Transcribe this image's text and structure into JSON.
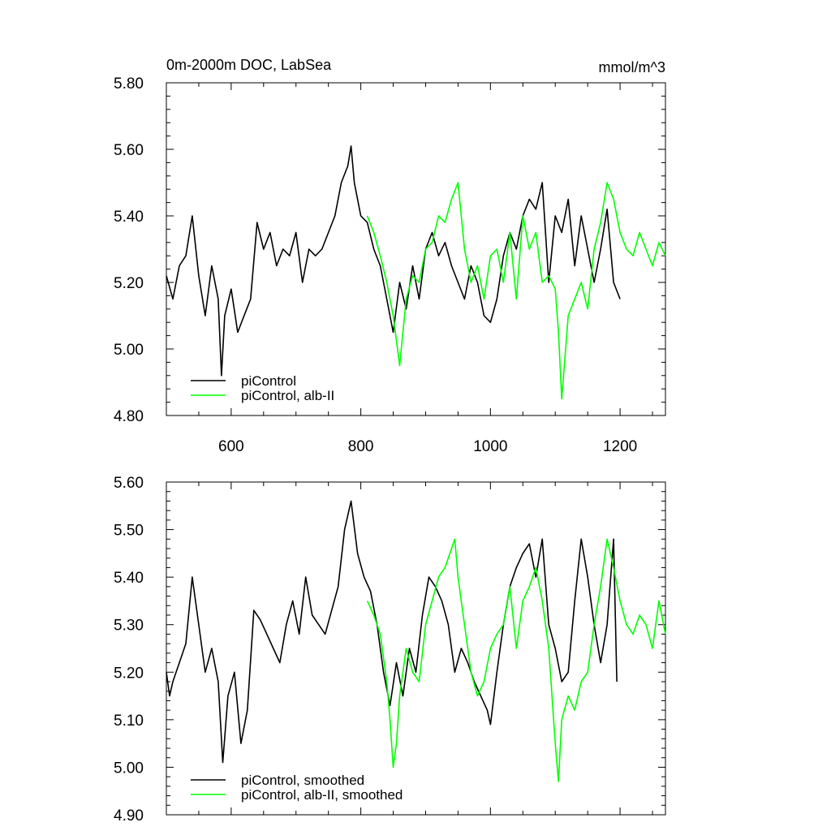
{
  "chart_data": [
    {
      "type": "line",
      "title": "0m-2000m DOC, LabSea",
      "units": "mmol/m^3",
      "xlabel": "",
      "ylabel": "",
      "xlim": [
        500,
        1270
      ],
      "ylim": [
        4.8,
        5.8
      ],
      "xticks": [
        600,
        800,
        1000,
        1200
      ],
      "xtick_labels": [
        "600",
        "800",
        "1000",
        "1200"
      ],
      "yticks": [
        4.8,
        5.0,
        5.2,
        5.4,
        5.6,
        5.8
      ],
      "ytick_labels": [
        "4.80",
        "5.00",
        "5.20",
        "5.40",
        "5.60",
        "5.80"
      ],
      "legend_position": "bottom-left",
      "grid": false,
      "series": [
        {
          "name": "piControl",
          "color": "#000000",
          "x": [
            500,
            510,
            520,
            530,
            540,
            550,
            560,
            570,
            580,
            585,
            590,
            600,
            610,
            620,
            630,
            640,
            650,
            660,
            670,
            680,
            690,
            700,
            710,
            720,
            730,
            740,
            750,
            760,
            770,
            780,
            785,
            790,
            800,
            810,
            820,
            830,
            840,
            850,
            860,
            870,
            880,
            890,
            900,
            910,
            920,
            930,
            940,
            950,
            960,
            970,
            980,
            990,
            1000,
            1010,
            1020,
            1030,
            1040,
            1050,
            1060,
            1070,
            1080,
            1090,
            1100,
            1110,
            1120,
            1130,
            1140,
            1150,
            1160,
            1170,
            1180,
            1190,
            1200
          ],
          "values": [
            5.22,
            5.15,
            5.25,
            5.28,
            5.4,
            5.22,
            5.1,
            5.25,
            5.15,
            4.92,
            5.1,
            5.18,
            5.05,
            5.1,
            5.15,
            5.38,
            5.3,
            5.35,
            5.25,
            5.3,
            5.28,
            5.35,
            5.2,
            5.3,
            5.28,
            5.3,
            5.35,
            5.4,
            5.5,
            5.55,
            5.61,
            5.5,
            5.4,
            5.38,
            5.3,
            5.25,
            5.15,
            5.05,
            5.2,
            5.12,
            5.25,
            5.15,
            5.3,
            5.35,
            5.28,
            5.32,
            5.25,
            5.2,
            5.15,
            5.25,
            5.2,
            5.1,
            5.08,
            5.15,
            5.28,
            5.35,
            5.3,
            5.4,
            5.45,
            5.42,
            5.5,
            5.2,
            5.4,
            5.35,
            5.45,
            5.25,
            5.4,
            5.3,
            5.2,
            5.3,
            5.42,
            5.2,
            5.15
          ]
        },
        {
          "name": "piControl, alb-II",
          "color": "#00ff00",
          "x": [
            810,
            820,
            830,
            840,
            850,
            860,
            870,
            880,
            890,
            900,
            910,
            920,
            930,
            940,
            950,
            960,
            970,
            980,
            990,
            1000,
            1010,
            1020,
            1030,
            1040,
            1050,
            1060,
            1070,
            1080,
            1090,
            1100,
            1105,
            1110,
            1120,
            1130,
            1140,
            1150,
            1160,
            1170,
            1180,
            1190,
            1200,
            1210,
            1220,
            1230,
            1240,
            1250,
            1260,
            1270
          ],
          "values": [
            5.4,
            5.35,
            5.28,
            5.2,
            5.1,
            4.95,
            5.15,
            5.22,
            5.2,
            5.3,
            5.32,
            5.4,
            5.38,
            5.45,
            5.5,
            5.3,
            5.2,
            5.25,
            5.15,
            5.28,
            5.3,
            5.2,
            5.35,
            5.15,
            5.4,
            5.3,
            5.35,
            5.2,
            5.22,
            5.18,
            5.05,
            4.85,
            5.1,
            5.15,
            5.2,
            5.12,
            5.3,
            5.38,
            5.5,
            5.45,
            5.35,
            5.3,
            5.28,
            5.35,
            5.3,
            5.25,
            5.32,
            5.28
          ]
        }
      ]
    },
    {
      "type": "line",
      "title": "",
      "xlabel": "",
      "ylabel": "",
      "xlim": [
        500,
        1270
      ],
      "ylim": [
        4.9,
        5.6
      ],
      "xticks": [
        600,
        800,
        1000,
        1200
      ],
      "xtick_labels": [
        "",
        "",
        "",
        ""
      ],
      "yticks": [
        4.9,
        5.0,
        5.1,
        5.2,
        5.3,
        5.4,
        5.5,
        5.6
      ],
      "ytick_labels": [
        "4.90",
        "5.00",
        "5.10",
        "5.20",
        "5.30",
        "5.40",
        "5.50",
        "5.60"
      ],
      "legend_position": "bottom-left",
      "grid": false,
      "series": [
        {
          "name": "piControl, smoothed",
          "color": "#000000",
          "x": [
            500,
            505,
            510,
            520,
            530,
            540,
            550,
            560,
            570,
            580,
            587,
            595,
            605,
            615,
            625,
            635,
            645,
            655,
            665,
            675,
            685,
            695,
            705,
            715,
            725,
            735,
            745,
            755,
            765,
            775,
            785,
            795,
            805,
            815,
            825,
            835,
            845,
            855,
            865,
            875,
            885,
            895,
            905,
            915,
            925,
            935,
            945,
            955,
            965,
            975,
            985,
            995,
            1000,
            1010,
            1020,
            1030,
            1040,
            1050,
            1060,
            1070,
            1080,
            1090,
            1100,
            1110,
            1120,
            1130,
            1140,
            1150,
            1160,
            1170,
            1180,
            1190,
            1195
          ],
          "values": [
            5.2,
            5.15,
            5.18,
            5.22,
            5.26,
            5.4,
            5.3,
            5.2,
            5.25,
            5.18,
            5.01,
            5.15,
            5.2,
            5.05,
            5.12,
            5.33,
            5.31,
            5.28,
            5.25,
            5.22,
            5.3,
            5.35,
            5.28,
            5.4,
            5.32,
            5.3,
            5.28,
            5.33,
            5.38,
            5.5,
            5.56,
            5.45,
            5.4,
            5.37,
            5.3,
            5.2,
            5.13,
            5.22,
            5.15,
            5.25,
            5.2,
            5.32,
            5.4,
            5.38,
            5.35,
            5.3,
            5.2,
            5.25,
            5.22,
            5.18,
            5.15,
            5.12,
            5.09,
            5.2,
            5.3,
            5.38,
            5.42,
            5.45,
            5.47,
            5.4,
            5.48,
            5.3,
            5.25,
            5.18,
            5.2,
            5.35,
            5.48,
            5.4,
            5.3,
            5.22,
            5.3,
            5.48,
            5.18
          ]
        },
        {
          "name": "piControl, alb-II, smoothed",
          "color": "#00ff00",
          "x": [
            810,
            820,
            830,
            840,
            845,
            850,
            855,
            860,
            870,
            880,
            890,
            900,
            910,
            920,
            930,
            940,
            945,
            950,
            960,
            970,
            980,
            990,
            1000,
            1010,
            1020,
            1030,
            1040,
            1050,
            1060,
            1070,
            1080,
            1090,
            1100,
            1105,
            1110,
            1120,
            1130,
            1140,
            1150,
            1160,
            1170,
            1180,
            1190,
            1200,
            1210,
            1220,
            1230,
            1240,
            1250,
            1260,
            1270
          ],
          "values": [
            5.35,
            5.32,
            5.28,
            5.18,
            5.1,
            5.0,
            5.05,
            5.15,
            5.25,
            5.2,
            5.18,
            5.3,
            5.35,
            5.4,
            5.42,
            5.46,
            5.48,
            5.4,
            5.3,
            5.2,
            5.15,
            5.18,
            5.25,
            5.28,
            5.3,
            5.38,
            5.25,
            5.35,
            5.38,
            5.42,
            5.35,
            5.25,
            5.05,
            4.97,
            5.1,
            5.15,
            5.12,
            5.18,
            5.2,
            5.3,
            5.38,
            5.48,
            5.42,
            5.35,
            5.3,
            5.28,
            5.32,
            5.3,
            5.25,
            5.35,
            5.28
          ]
        }
      ]
    }
  ]
}
